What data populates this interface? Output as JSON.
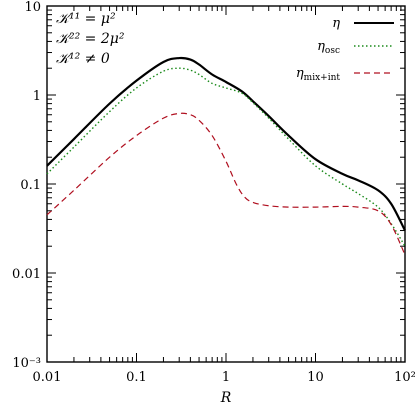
{
  "chart_data": {
    "type": "line",
    "title": "",
    "xlabel": "R",
    "ylabel": "",
    "xscale": "log",
    "yscale": "log",
    "xlim": [
      0.01,
      100
    ],
    "ylim": [
      0.001,
      10
    ],
    "grid": false,
    "legend_position": "top-right",
    "x_ticks": [
      {
        "value": 0.01,
        "label": "0.01"
      },
      {
        "value": 0.1,
        "label": "0.1"
      },
      {
        "value": 1,
        "label": "1"
      },
      {
        "value": 10,
        "label": "10"
      },
      {
        "value": 100,
        "label": "10²"
      }
    ],
    "y_ticks": [
      {
        "value": 0.001,
        "label": "10⁻³"
      },
      {
        "value": 0.01,
        "label": "0.01"
      },
      {
        "value": 0.1,
        "label": "0.1"
      },
      {
        "value": 1,
        "label": "1"
      },
      {
        "value": 10,
        "label": "10"
      }
    ],
    "annotations": [
      "𝒦¹¹ = μ²",
      "𝒦²² = 2μ²",
      "𝒦¹² ≠ 0"
    ],
    "series": [
      {
        "name": "η",
        "color": "#000000",
        "style": "solid",
        "x": [
          0.01,
          0.02,
          0.05,
          0.1,
          0.2,
          0.3,
          0.4,
          0.5,
          0.7,
          1,
          1.5,
          2,
          3,
          5,
          10,
          20,
          30,
          50,
          70,
          100
        ],
        "y": [
          0.16,
          0.32,
          0.8,
          1.45,
          2.35,
          2.6,
          2.5,
          2.2,
          1.7,
          1.4,
          1.1,
          0.85,
          0.58,
          0.35,
          0.19,
          0.13,
          0.11,
          0.085,
          0.06,
          0.03
        ]
      },
      {
        "name": "η_osc",
        "color": "#1a8a1a",
        "style": "dotted",
        "x": [
          0.01,
          0.02,
          0.05,
          0.1,
          0.2,
          0.3,
          0.4,
          0.5,
          0.7,
          1,
          1.5,
          2,
          3,
          5,
          10,
          20,
          30,
          50,
          70,
          100
        ],
        "y": [
          0.13,
          0.26,
          0.65,
          1.2,
          1.85,
          2.0,
          1.9,
          1.7,
          1.35,
          1.2,
          1.05,
          0.82,
          0.55,
          0.32,
          0.16,
          0.1,
          0.078,
          0.055,
          0.036,
          0.02
        ]
      },
      {
        "name": "η_mix+int",
        "color": "#b01020",
        "style": "dashed",
        "x": [
          0.01,
          0.02,
          0.05,
          0.1,
          0.2,
          0.3,
          0.4,
          0.5,
          0.7,
          1,
          1.3,
          1.6,
          2,
          3,
          5,
          10,
          20,
          30,
          50,
          70,
          100
        ],
        "y": [
          0.045,
          0.085,
          0.2,
          0.35,
          0.55,
          0.62,
          0.6,
          0.52,
          0.35,
          0.18,
          0.1,
          0.072,
          0.062,
          0.057,
          0.055,
          0.055,
          0.056,
          0.055,
          0.05,
          0.035,
          0.016
        ]
      }
    ]
  }
}
